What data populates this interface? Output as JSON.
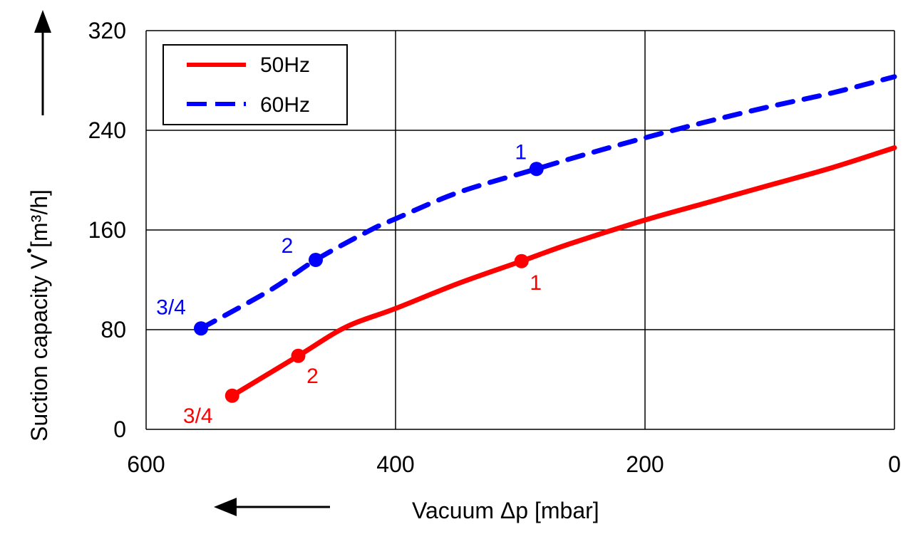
{
  "chart_data": {
    "type": "line",
    "xlabel": "Vacuum Δp [mbar]",
    "ylabel": "Suction capacity V [m³/h]",
    "xlim": [
      600,
      0
    ],
    "ylim": [
      0,
      320
    ],
    "x_ticks": [
      "600",
      "400",
      "200",
      "0"
    ],
    "x_tick_values": [
      600,
      400,
      200,
      0
    ],
    "y_ticks": [
      "0",
      "80",
      "160",
      "240",
      "320"
    ],
    "y_tick_values": [
      0,
      80,
      160,
      240,
      320
    ],
    "grid": true,
    "legend_position": "top-left",
    "series": [
      {
        "name": "50Hz",
        "color": "#ff0000",
        "style": "solid",
        "x": [
          531,
          478,
          440,
          400,
          350,
          299,
          260,
          200,
          150,
          100,
          50,
          0
        ],
        "y": [
          27,
          59,
          82,
          97,
          117,
          135,
          149,
          168,
          182,
          196,
          210,
          226
        ],
        "markers": [
          {
            "label": "3/4",
            "x": 531,
            "y": 27
          },
          {
            "label": "2",
            "x": 478,
            "y": 59
          },
          {
            "label": "1",
            "x": 299,
            "y": 135
          }
        ]
      },
      {
        "name": "60Hz",
        "color": "#0000ff",
        "style": "dashed",
        "x": [
          556,
          500,
          464,
          420,
          400,
          350,
          287,
          250,
          200,
          150,
          100,
          50,
          0
        ],
        "y": [
          81,
          112,
          136,
          160,
          169,
          190,
          209,
          220,
          234,
          247,
          259,
          270,
          283
        ],
        "markers": [
          {
            "label": "3/4",
            "x": 556,
            "y": 81
          },
          {
            "label": "2",
            "x": 464,
            "y": 136
          },
          {
            "label": "1",
            "x": 287,
            "y": 209
          }
        ]
      }
    ]
  }
}
